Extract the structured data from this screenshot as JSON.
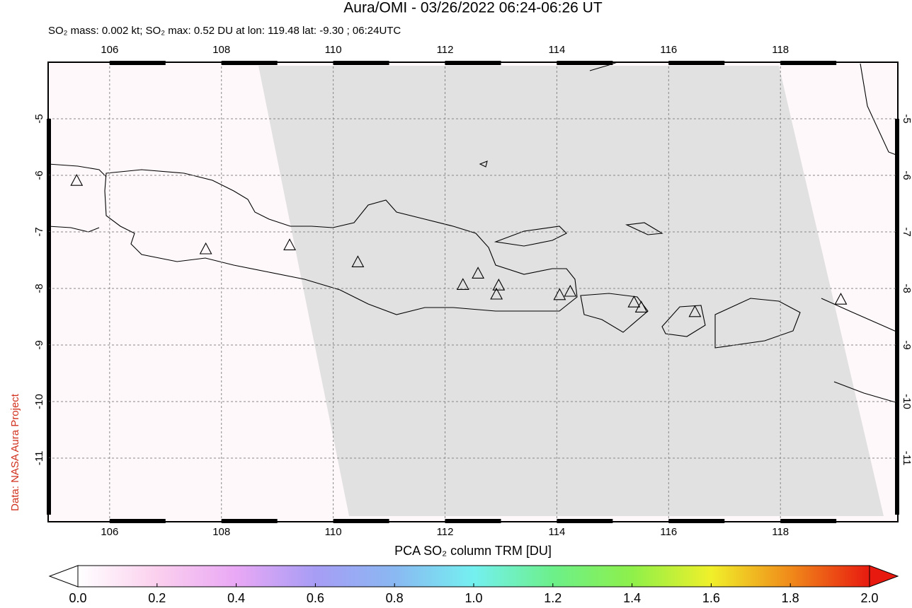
{
  "chart_data": {
    "type": "map",
    "title": "Aura/OMI - 03/26/2022 06:24-06:26 UT",
    "subtitle": "SO₂ mass: 0.002 kt; SO₂ max: 0.52 DU at lon: 119.48 lat: -9.30 ; 06:24UTC",
    "credit": "Data: NASA Aura Project",
    "xlim": [
      104.9,
      120.1
    ],
    "ylim": [
      -12.125,
      -4.0
    ],
    "xticks": [
      106,
      108,
      110,
      112,
      114,
      116,
      118
    ],
    "yticks": [
      -5,
      -6,
      -7,
      -8,
      -9,
      -10,
      -11
    ],
    "grid": true,
    "volcanoes": {
      "lon": [
        105.41,
        107.72,
        109.22,
        110.44,
        112.32,
        112.59,
        112.96,
        112.92,
        114.05,
        114.24,
        115.38,
        115.51,
        116.47,
        119.08
      ],
      "lat": [
        -6.09,
        -7.3,
        -7.23,
        -7.53,
        -7.93,
        -7.73,
        -7.94,
        -8.1,
        -8.11,
        -8.05,
        -8.24,
        -8.33,
        -8.41,
        -8.19
      ]
    },
    "colorbar": {
      "label": "PCA SO₂ column TRM [DU]",
      "lim": [
        0,
        2
      ],
      "ticks": [
        {
          "value": 0,
          "label": "0.0"
        },
        0.2,
        0.4,
        0.6,
        0.8,
        {
          "value": 1,
          "label": "1.0"
        },
        1.2,
        1.4,
        1.6,
        1.8,
        {
          "value": 2,
          "label": "2.0"
        }
      ],
      "colors": [
        "#ffffff",
        "#fbd0ee",
        "#e9a8f5",
        "#a79df5",
        "#8ab8f2",
        "#74f0f0",
        "#6cf08a",
        "#8ef04a",
        "#f0f02a",
        "#f08a1a",
        "#e81a10"
      ]
    }
  }
}
